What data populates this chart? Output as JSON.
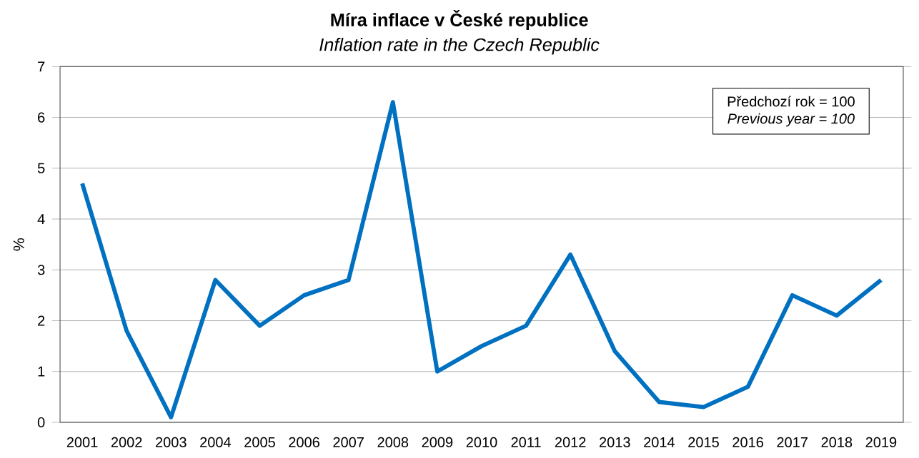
{
  "chart_data": {
    "type": "line",
    "title": "Míra inflace v České republice",
    "subtitle": "Inflation rate in the Czech Republic",
    "ylabel": "%",
    "categories": [
      "2001",
      "2002",
      "2003",
      "2004",
      "2005",
      "2006",
      "2007",
      "2008",
      "2009",
      "2010",
      "2011",
      "2012",
      "2013",
      "2014",
      "2015",
      "2016",
      "2017",
      "2018",
      "2019"
    ],
    "series": [
      {
        "color": "#0070c0",
        "values": [
          4.7,
          1.8,
          0.1,
          2.8,
          1.9,
          2.5,
          2.8,
          6.3,
          1.0,
          1.5,
          1.9,
          3.3,
          1.4,
          0.4,
          0.3,
          0.7,
          2.5,
          2.1,
          2.8
        ]
      }
    ],
    "ylim": [
      0,
      7
    ],
    "yticks": [
      0,
      1,
      2,
      3,
      4,
      5,
      6,
      7
    ],
    "grid": "y",
    "marker": "none",
    "line_style": "solid",
    "annotations": [
      "Předchozí rok = 100",
      "*Previous year = 100*"
    ]
  }
}
